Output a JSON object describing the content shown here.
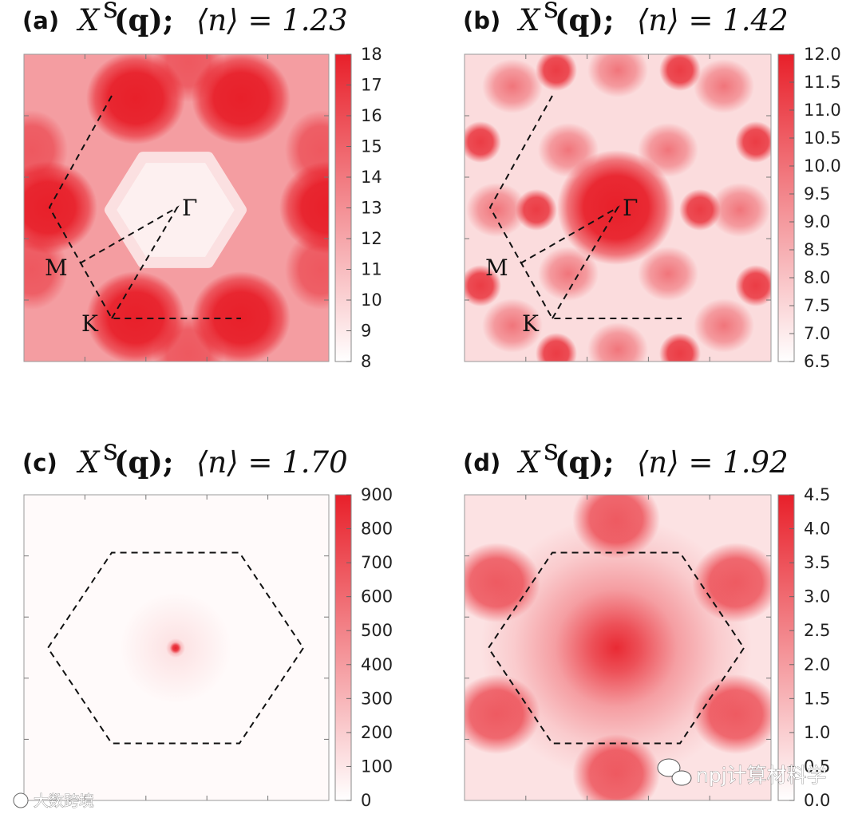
{
  "chart_data": [
    {
      "type": "heatmap",
      "panel": "(a)",
      "title_prefix": "(a)",
      "title_symbol": "X",
      "title_superscript": "s",
      "title_arg": "(q);",
      "title_n": "⟨n⟩ = 1.23",
      "n_value": 1.23,
      "colorbar": {
        "min": 8,
        "max": 18,
        "ticks": [
          "18",
          "17",
          "16",
          "15",
          "14",
          "13",
          "12",
          "11",
          "10",
          "9",
          "8"
        ]
      },
      "pattern": "peaks_at_K",
      "path_labels": [
        "Γ",
        "M",
        "K"
      ],
      "overlay": "path"
    },
    {
      "type": "heatmap",
      "panel": "(b)",
      "title_prefix": "(b)",
      "title_symbol": "X",
      "title_superscript": "s",
      "title_arg": "(q);",
      "title_n": "⟨n⟩ = 1.42",
      "n_value": 1.42,
      "colorbar": {
        "min": 6.5,
        "max": 12.0,
        "ticks": [
          "12.0",
          "11.5",
          "11.0",
          "10.5",
          "10.0",
          "9.5",
          "9.0",
          "8.5",
          "8.0",
          "7.5",
          "7.0",
          "6.5"
        ]
      },
      "pattern": "peak_at_Gamma_with_satellites",
      "path_labels": [
        "Γ",
        "M",
        "K"
      ],
      "overlay": "path"
    },
    {
      "type": "heatmap",
      "panel": "(c)",
      "title_prefix": "(c)",
      "title_symbol": "X",
      "title_superscript": "s",
      "title_arg": "(q);",
      "title_n": "⟨n⟩ = 1.70",
      "n_value": 1.7,
      "colorbar": {
        "min": 0,
        "max": 900,
        "ticks": [
          "900",
          "800",
          "700",
          "600",
          "500",
          "400",
          "300",
          "200",
          "100",
          "0"
        ]
      },
      "pattern": "sharp_peak_at_Gamma",
      "path_labels": [],
      "overlay": "hexagon"
    },
    {
      "type": "heatmap",
      "panel": "(d)",
      "title_prefix": "(d)",
      "title_symbol": "X",
      "title_superscript": "s",
      "title_arg": "(q);",
      "title_n": "⟨n⟩ = 1.92",
      "n_value": 1.92,
      "colorbar": {
        "min": 0.0,
        "max": 4.5,
        "ticks": [
          "4.5",
          "4.0",
          "3.5",
          "3.0",
          "2.5",
          "2.0",
          "1.5",
          "1.0",
          "0.5",
          "0.0"
        ]
      },
      "pattern": "broad_peak_at_Gamma",
      "path_labels": [],
      "overlay": "hexagon"
    }
  ],
  "colors": {
    "max": "#e8202a",
    "min": "#ffffff",
    "frame": "#888888",
    "dash": "#111111"
  },
  "watermarks": {
    "right": "npj计算材料学",
    "left": "大数跨境"
  }
}
